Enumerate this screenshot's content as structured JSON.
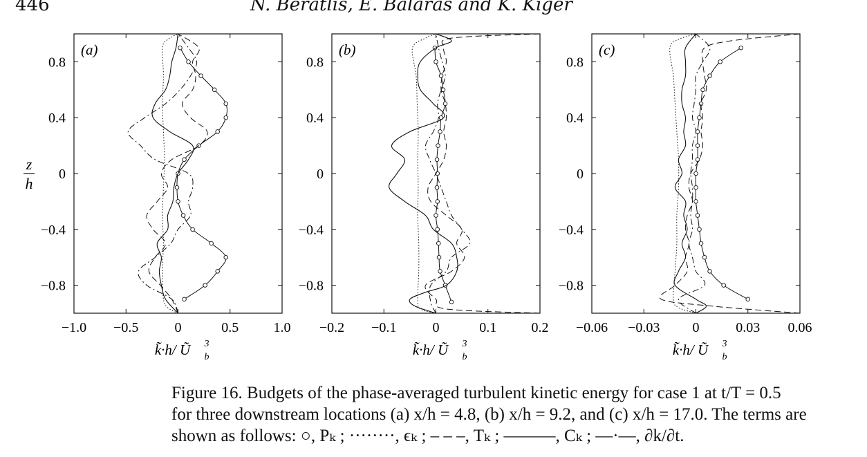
{
  "header": {
    "page_number": "446",
    "running_head": "N. Beratlis, E. Balaras and K. Kiger"
  },
  "figure": {
    "y_axis_label_num": "z",
    "y_axis_label_den": "h",
    "x_axis_label": "k̃·h/ Ũ",
    "x_axis_label_sup": "3",
    "x_axis_label_sub": "b"
  },
  "caption": {
    "line1": "Figure 16. Budgets of the phase-averaged turbulent kinetic energy for case 1 at t/T = 0.5",
    "line2": "for three downstream locations (a) x/h = 4.8, (b) x/h = 9.2, and (c) x/h = 17.0. The terms are",
    "line3": "shown as follows: ○, Pₖ ; ········, ϵₖ ; – – –, Tₖ ; ———, Cₖ ; —·—, ∂k/∂t."
  },
  "chart_data": [
    {
      "type": "line",
      "panel_label": "(a)",
      "xlim": [
        -1.0,
        1.0
      ],
      "ylim": [
        -1.0,
        1.0
      ],
      "x_ticks": [
        "−1.0",
        "−0.5",
        "0",
        "0.5",
        "1.0"
      ],
      "x_tick_values": [
        -1.0,
        -0.5,
        0,
        0.5,
        1.0
      ],
      "y_ticks": [
        "0.8",
        "0.4",
        "0",
        "−0.4",
        "−0.8"
      ],
      "y_tick_values": [
        0.8,
        0.4,
        0,
        -0.4,
        -0.8
      ],
      "series": [
        {
          "name": "Pₖ",
          "style": "circles",
          "z": [
            -0.9,
            -0.8,
            -0.7,
            -0.6,
            -0.5,
            -0.4,
            -0.3,
            -0.2,
            -0.1,
            0.0,
            0.1,
            0.2,
            0.3,
            0.4,
            0.5,
            0.6,
            0.7,
            0.8,
            0.9
          ],
          "x": [
            0.06,
            0.26,
            0.38,
            0.46,
            0.32,
            0.14,
            0.05,
            0.0,
            -0.01,
            0.0,
            0.06,
            0.2,
            0.38,
            0.46,
            0.46,
            0.35,
            0.22,
            0.1,
            0.02
          ]
        },
        {
          "name": "ϵₖ",
          "style": "dotted",
          "z": [
            -1.0,
            -0.96,
            -0.9,
            -0.7,
            -0.5,
            -0.3,
            -0.1,
            0.1,
            0.3,
            0.5,
            0.7,
            0.9,
            0.96,
            1.0
          ],
          "x": [
            0.0,
            -0.1,
            -0.14,
            -0.15,
            -0.14,
            -0.15,
            -0.14,
            -0.13,
            -0.14,
            -0.15,
            -0.14,
            -0.15,
            -0.1,
            0.0
          ]
        },
        {
          "name": "Tₖ",
          "style": "dashed",
          "z": [
            -1.0,
            -0.9,
            -0.8,
            -0.7,
            -0.6,
            -0.5,
            -0.4,
            -0.3,
            -0.2,
            -0.1,
            0.0,
            0.1,
            0.2,
            0.3,
            0.4,
            0.5,
            0.6,
            0.7,
            0.8,
            0.9,
            1.0
          ],
          "x": [
            0.0,
            -0.06,
            -0.17,
            -0.28,
            -0.22,
            -0.12,
            -0.24,
            -0.3,
            -0.2,
            -0.1,
            -0.16,
            -0.06,
            0.2,
            0.28,
            0.12,
            0.04,
            0.14,
            0.17,
            0.14,
            0.2,
            0.0
          ]
        },
        {
          "name": "Cₖ",
          "style": "solid",
          "z": [
            -1.0,
            -0.9,
            -0.8,
            -0.7,
            -0.6,
            -0.5,
            -0.4,
            -0.3,
            -0.2,
            -0.1,
            0.0,
            0.1,
            0.2,
            0.3,
            0.4,
            0.5,
            0.6,
            0.7,
            0.8,
            0.9,
            1.0
          ],
          "x": [
            0.0,
            -0.12,
            -0.16,
            -0.18,
            -0.16,
            -0.2,
            -0.1,
            -0.1,
            -0.05,
            -0.04,
            0.0,
            0.1,
            0.14,
            -0.08,
            -0.24,
            -0.22,
            -0.12,
            -0.08,
            -0.06,
            -0.02,
            0.0
          ]
        },
        {
          "name": "∂k/∂t",
          "style": "dash-dot",
          "z": [
            -1.0,
            -0.9,
            -0.8,
            -0.7,
            -0.6,
            -0.5,
            -0.4,
            -0.3,
            -0.2,
            -0.1,
            0.0,
            0.1,
            0.2,
            0.3,
            0.4,
            0.5,
            0.6,
            0.7,
            0.8,
            0.9,
            1.0
          ],
          "x": [
            0.0,
            -0.06,
            -0.3,
            -0.38,
            -0.22,
            -0.07,
            0.0,
            0.12,
            0.1,
            0.14,
            0.1,
            -0.22,
            -0.36,
            -0.48,
            -0.32,
            -0.12,
            0.02,
            0.12,
            0.18,
            0.1,
            0.0
          ]
        }
      ]
    },
    {
      "type": "line",
      "panel_label": "(b)",
      "xlim": [
        -0.2,
        0.2
      ],
      "ylim": [
        -1.0,
        1.0
      ],
      "x_ticks": [
        "−0.2",
        "−0.1",
        "0",
        "0.1",
        "0.2"
      ],
      "x_tick_values": [
        -0.2,
        -0.1,
        0,
        0.1,
        0.2
      ],
      "y_ticks": [
        "0.8",
        "0.4",
        "0",
        "−0.4",
        "−0.8"
      ],
      "y_tick_values": [
        0.8,
        0.4,
        0,
        -0.4,
        -0.8
      ],
      "series": [
        {
          "name": "Pₖ",
          "style": "circles",
          "z": [
            -0.92,
            -0.8,
            -0.7,
            -0.6,
            -0.5,
            -0.4,
            -0.3,
            -0.2,
            -0.1,
            0.0,
            0.1,
            0.2,
            0.3,
            0.4,
            0.5,
            0.6,
            0.7,
            0.8,
            0.9
          ],
          "x": [
            0.03,
            0.018,
            0.008,
            0.006,
            0.005,
            0.003,
            0.0,
            0.003,
            0.002,
            0.003,
            0.002,
            0.004,
            0.008,
            0.01,
            0.018,
            0.014,
            0.01,
            0.0,
            -0.002
          ]
        },
        {
          "name": "ϵₖ",
          "style": "dotted",
          "z": [
            -1.0,
            -0.97,
            -0.9,
            -0.7,
            -0.5,
            -0.3,
            -0.1,
            0.1,
            0.3,
            0.5,
            0.7,
            0.9,
            0.97,
            1.0
          ],
          "x": [
            0.0,
            -0.03,
            -0.035,
            -0.033,
            -0.033,
            -0.035,
            -0.034,
            -0.035,
            -0.034,
            -0.036,
            -0.038,
            -0.045,
            -0.02,
            0.0
          ]
        },
        {
          "name": "Tₖ",
          "style": "dashed",
          "z": [
            -1.0,
            -0.97,
            -0.9,
            -0.8,
            -0.7,
            -0.6,
            -0.5,
            -0.4,
            -0.3,
            -0.2,
            -0.1,
            0.0,
            0.1,
            0.2,
            0.3,
            0.4,
            0.5,
            0.6,
            0.7,
            0.8,
            0.9,
            0.97,
            1.0
          ],
          "x": [
            0.2,
            0.02,
            0.0,
            -0.02,
            0.03,
            0.055,
            0.04,
            0.05,
            0.02,
            -0.01,
            -0.015,
            0.0,
            0.015,
            0.02,
            0.015,
            0.02,
            0.018,
            0.01,
            0.012,
            0.02,
            0.015,
            0.03,
            0.2
          ]
        },
        {
          "name": "Cₖ",
          "style": "solid",
          "z": [
            -1.0,
            -0.95,
            -0.9,
            -0.85,
            -0.8,
            -0.7,
            -0.6,
            -0.5,
            -0.4,
            -0.3,
            -0.2,
            -0.1,
            0.0,
            0.1,
            0.2,
            0.3,
            0.4,
            0.5,
            0.6,
            0.7,
            0.8,
            0.9,
            0.95,
            1.0
          ],
          "x": [
            0.0,
            -0.04,
            -0.05,
            -0.02,
            0.02,
            0.04,
            0.04,
            0.03,
            -0.005,
            -0.02,
            -0.06,
            -0.09,
            -0.075,
            -0.06,
            -0.085,
            -0.05,
            0.015,
            -0.005,
            -0.03,
            -0.035,
            -0.03,
            0.0,
            0.03,
            0.0
          ]
        },
        {
          "name": "∂k/∂t",
          "style": "dash-dot",
          "z": [
            -1.0,
            -0.92,
            -0.8,
            -0.7,
            -0.6,
            -0.5,
            -0.4,
            -0.3,
            -0.2,
            -0.1,
            0.0,
            0.1,
            0.2,
            0.3,
            0.4,
            0.5,
            0.6,
            0.7,
            0.8,
            0.9,
            1.0
          ],
          "x": [
            0.0,
            -0.01,
            -0.01,
            0.02,
            0.03,
            0.065,
            0.05,
            0.03,
            0.02,
            0.01,
            0.0,
            -0.012,
            -0.02,
            -0.005,
            0.005,
            0.003,
            0.01,
            0.018,
            0.012,
            0.005,
            0.0
          ]
        }
      ]
    },
    {
      "type": "line",
      "panel_label": "(c)",
      "xlim": [
        -0.06,
        0.06
      ],
      "ylim": [
        -1.0,
        1.0
      ],
      "x_ticks": [
        "−0.06",
        "−0.03",
        "0",
        "0.03",
        "0.06"
      ],
      "x_tick_values": [
        -0.06,
        -0.03,
        0,
        0.03,
        0.06
      ],
      "y_ticks": [
        "0.8",
        "0.4",
        "0",
        "−0.4",
        "−0.8"
      ],
      "y_tick_values": [
        0.8,
        0.4,
        0,
        -0.4,
        -0.8
      ],
      "series": [
        {
          "name": "Pₖ",
          "style": "circles",
          "z": [
            -0.9,
            -0.8,
            -0.7,
            -0.6,
            -0.5,
            -0.4,
            -0.3,
            -0.2,
            -0.1,
            0.0,
            0.1,
            0.2,
            0.3,
            0.4,
            0.5,
            0.6,
            0.7,
            0.8,
            0.9
          ],
          "x": [
            0.03,
            0.016,
            0.008,
            0.005,
            0.003,
            0.002,
            0.001,
            0.0,
            0.0,
            0.0,
            0.001,
            0.001,
            0.001,
            0.002,
            0.003,
            0.004,
            0.008,
            0.014,
            0.026
          ]
        },
        {
          "name": "ϵₖ",
          "style": "dotted",
          "z": [
            -1.0,
            -0.96,
            -0.9,
            -0.7,
            -0.5,
            -0.3,
            -0.1,
            0.1,
            0.3,
            0.5,
            0.7,
            0.9,
            0.96,
            1.0
          ],
          "x": [
            0.0,
            -0.01,
            -0.013,
            -0.012,
            -0.011,
            -0.011,
            -0.01,
            -0.01,
            -0.011,
            -0.012,
            -0.013,
            -0.015,
            -0.01,
            0.0
          ]
        },
        {
          "name": "Tₖ",
          "style": "dashed",
          "z": [
            -1.0,
            -0.95,
            -0.9,
            -0.8,
            -0.7,
            -0.6,
            -0.5,
            -0.4,
            -0.3,
            -0.2,
            -0.1,
            0.0,
            0.1,
            0.2,
            0.3,
            0.4,
            0.5,
            0.6,
            0.7,
            0.8,
            0.9,
            0.95,
            1.0
          ],
          "x": [
            0.06,
            0.01,
            -0.02,
            -0.012,
            -0.005,
            -0.006,
            -0.004,
            -0.006,
            -0.005,
            -0.002,
            -0.004,
            -0.003,
            0.002,
            0.004,
            0.003,
            0.004,
            0.003,
            0.006,
            0.005,
            0.004,
            0.005,
            0.02,
            0.06
          ]
        },
        {
          "name": "Cₖ",
          "style": "solid",
          "z": [
            -1.0,
            -0.95,
            -0.9,
            -0.8,
            -0.7,
            -0.6,
            -0.5,
            -0.4,
            -0.3,
            -0.2,
            -0.1,
            0.0,
            0.1,
            0.2,
            0.3,
            0.4,
            0.5,
            0.6,
            0.7,
            0.8,
            0.9,
            1.0
          ],
          "x": [
            0.0,
            0.006,
            0.0,
            -0.012,
            -0.01,
            -0.006,
            -0.008,
            -0.005,
            -0.007,
            -0.006,
            -0.012,
            -0.008,
            -0.01,
            -0.006,
            -0.007,
            -0.006,
            -0.008,
            -0.008,
            -0.006,
            -0.006,
            -0.006,
            0.0
          ]
        },
        {
          "name": "∂k/∂t",
          "style": "dash-dot",
          "z": [
            -1.0,
            -0.9,
            -0.8,
            -0.7,
            -0.6,
            -0.5,
            -0.4,
            -0.3,
            -0.2,
            -0.1,
            0.0,
            0.1,
            0.2,
            0.3,
            0.4,
            0.5,
            0.6,
            0.7,
            0.8,
            0.9,
            1.0
          ],
          "x": [
            0.0,
            -0.01,
            0.005,
            0.0,
            -0.002,
            -0.004,
            -0.002,
            -0.003,
            -0.002,
            -0.002,
            -0.003,
            -0.002,
            -0.002,
            0.0,
            -0.002,
            -0.001,
            0.0,
            0.0,
            0.004,
            0.008,
            0.0
          ]
        }
      ]
    }
  ]
}
